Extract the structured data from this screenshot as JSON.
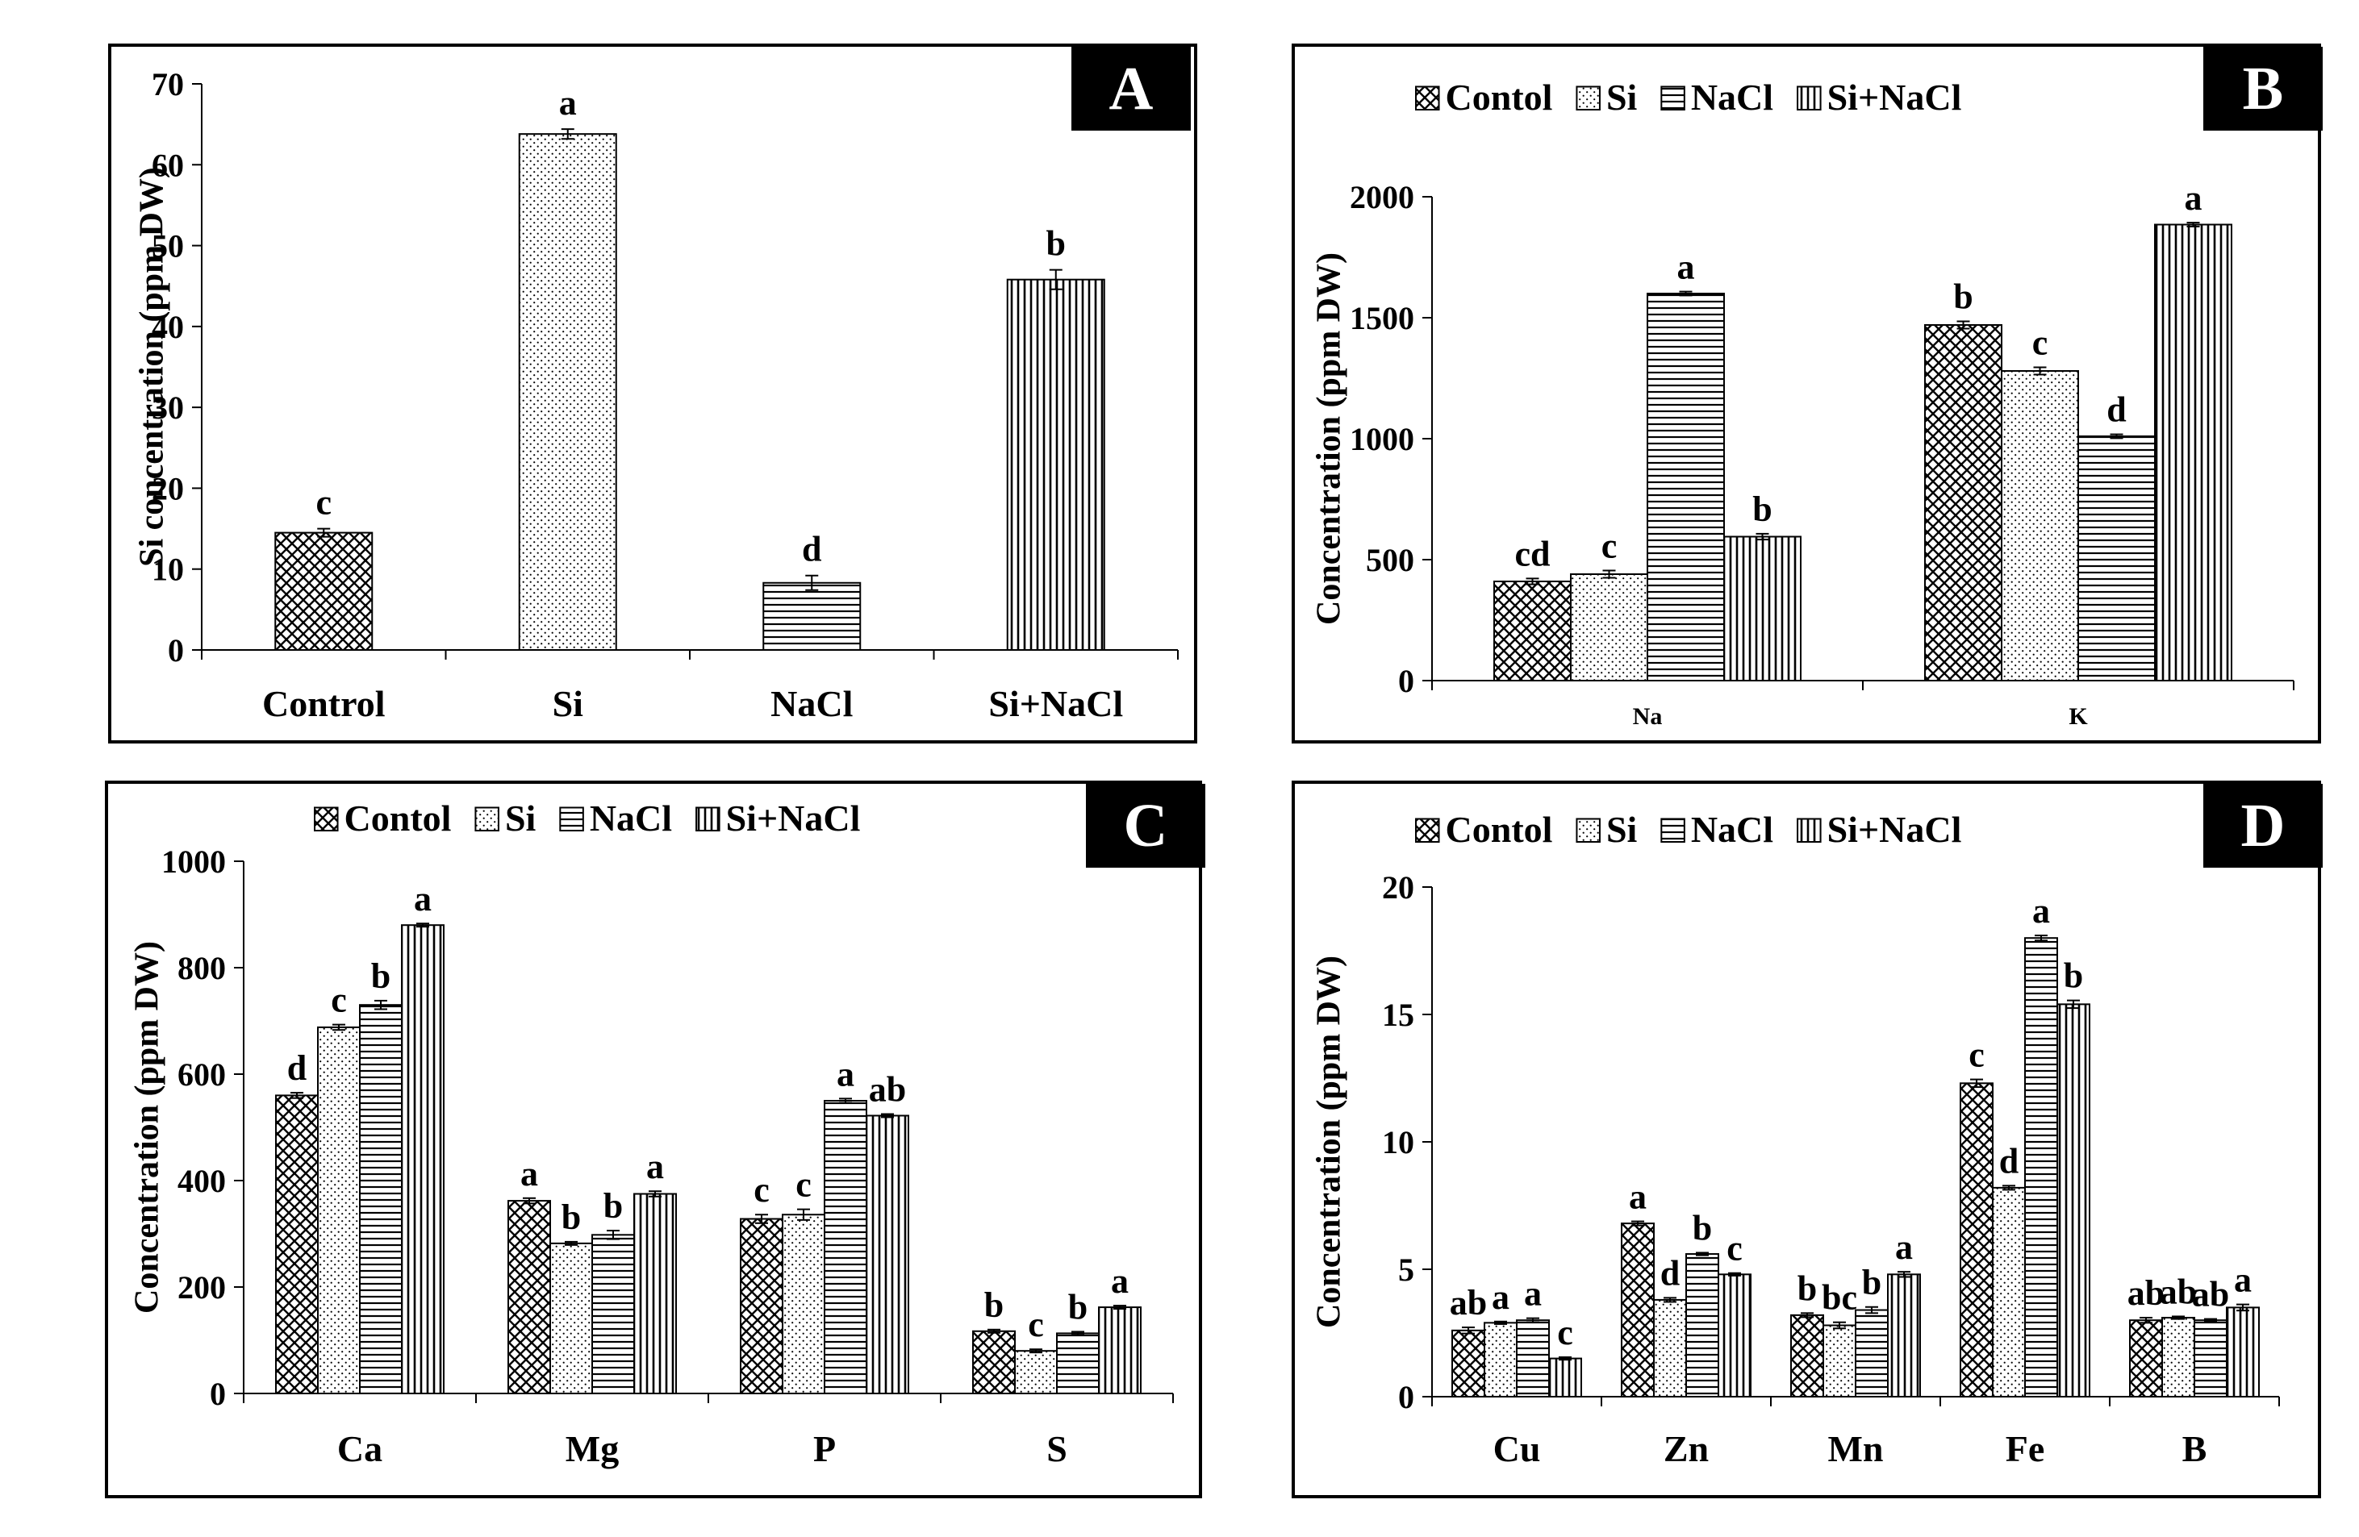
{
  "panels": [
    {
      "id": "A",
      "panel_label": "A",
      "ylabel": "Si concentration  (ppm DW)",
      "ylim": [
        0,
        70
      ],
      "yticks": [
        0,
        10,
        20,
        30,
        40,
        50,
        60,
        70
      ],
      "legend": null
    },
    {
      "id": "B",
      "panel_label": "B",
      "ylabel": "Concentration  (ppm DW)",
      "ylim": [
        0,
        2000
      ],
      "yticks": [
        0,
        500,
        1000,
        1500,
        2000
      ],
      "legend": [
        "Contol",
        "Si",
        "NaCl",
        "Si+NaCl"
      ]
    },
    {
      "id": "C",
      "panel_label": "C",
      "ylabel": "Concentration  (ppm DW)",
      "ylim": [
        0,
        1000
      ],
      "yticks": [
        0,
        200,
        400,
        600,
        800,
        1000
      ],
      "legend": [
        "Contol",
        "Si",
        "NaCl",
        "Si+NaCl"
      ]
    },
    {
      "id": "D",
      "panel_label": "D",
      "ylabel": "Concentration  (ppm DW)",
      "ylim": [
        0,
        20
      ],
      "yticks": [
        0,
        5,
        10,
        15,
        20
      ],
      "legend": [
        "Contol",
        "Si",
        "NaCl",
        "Si+NaCl"
      ]
    }
  ],
  "chart_data": [
    {
      "type": "bar",
      "panel": "A",
      "categories": [
        "Control",
        "Si",
        "NaCl",
        "Si+NaCl"
      ],
      "ylabel": "Si concentration  (ppm DW)",
      "ylim": [
        0,
        70
      ],
      "grid": false,
      "series": [
        {
          "values": [
            14.5,
            63.8,
            8.3,
            45.8
          ],
          "errors": [
            0.5,
            0.6,
            0.9,
            1.2
          ],
          "patterns": [
            "crosshatch",
            "dots",
            "horizontal",
            "vertical"
          ],
          "letters": [
            "c",
            "a",
            "d",
            "b"
          ]
        }
      ]
    },
    {
      "type": "bar",
      "panel": "B",
      "categories": [
        "Na",
        "K"
      ],
      "ylabel": "Concentration  (ppm DW)",
      "ylim": [
        0,
        2000
      ],
      "grid": false,
      "legend_position": "top",
      "series": [
        {
          "name": "Contol",
          "pattern": "crosshatch",
          "values": [
            410,
            1470
          ],
          "errors": [
            12,
            15
          ],
          "letters": [
            "cd",
            "b"
          ]
        },
        {
          "name": "Si",
          "pattern": "dots",
          "values": [
            440,
            1280
          ],
          "errors": [
            15,
            15
          ],
          "letters": [
            "c",
            "c"
          ]
        },
        {
          "name": "NaCl",
          "pattern": "horizontal",
          "values": [
            1600,
            1010
          ],
          "errors": [
            8,
            8
          ],
          "letters": [
            "a",
            "d"
          ]
        },
        {
          "name": "Si+NaCl",
          "pattern": "vertical",
          "values": [
            595,
            1885
          ],
          "errors": [
            12,
            8
          ],
          "letters": [
            "b",
            "a"
          ]
        }
      ]
    },
    {
      "type": "bar",
      "panel": "C",
      "categories": [
        "Ca",
        "Mg",
        "P",
        "S"
      ],
      "ylabel": "Concentration  (ppm DW)",
      "ylim": [
        0,
        1000
      ],
      "grid": false,
      "legend_position": "top",
      "series": [
        {
          "name": "Contol",
          "pattern": "crosshatch",
          "values": [
            560,
            362,
            328,
            117
          ],
          "errors": [
            5,
            5,
            8,
            3
          ],
          "letters": [
            "d",
            "a",
            "c",
            "b"
          ]
        },
        {
          "name": "Si",
          "pattern": "dots",
          "values": [
            688,
            282,
            336,
            80
          ],
          "errors": [
            5,
            3,
            10,
            3
          ],
          "letters": [
            "c",
            "b",
            "c",
            "c"
          ]
        },
        {
          "name": "NaCl",
          "pattern": "horizontal",
          "values": [
            730,
            298,
            550,
            113
          ],
          "errors": [
            8,
            8,
            4,
            3
          ],
          "letters": [
            "b",
            "b",
            "a",
            "b"
          ]
        },
        {
          "name": "Si+NaCl",
          "pattern": "vertical",
          "values": [
            880,
            375,
            522,
            162
          ],
          "errors": [
            3,
            5,
            3,
            3
          ],
          "letters": [
            "a",
            "a",
            "ab",
            "a"
          ]
        }
      ]
    },
    {
      "type": "bar",
      "panel": "D",
      "categories": [
        "Cu",
        "Zn",
        "Mn",
        "Fe",
        "B"
      ],
      "ylabel": "Concentration  (ppm DW)",
      "ylim": [
        0,
        20
      ],
      "grid": false,
      "legend_position": "top",
      "series": [
        {
          "name": "Contol",
          "pattern": "crosshatch",
          "values": [
            2.6,
            6.8,
            3.2,
            12.3,
            3.0
          ],
          "errors": [
            0.12,
            0.08,
            0.08,
            0.15,
            0.1
          ],
          "letters": [
            "ab",
            "a",
            "b",
            "c",
            "ab"
          ]
        },
        {
          "name": "Si",
          "pattern": "dots",
          "values": [
            2.9,
            3.8,
            2.8,
            8.2,
            3.1
          ],
          "errors": [
            0.05,
            0.08,
            0.12,
            0.08,
            0.05
          ],
          "letters": [
            "a",
            "d",
            "bc",
            "d",
            "ab"
          ]
        },
        {
          "name": "NaCl",
          "pattern": "horizontal",
          "values": [
            3.0,
            5.6,
            3.4,
            18.0,
            3.0
          ],
          "errors": [
            0.08,
            0.05,
            0.12,
            0.1,
            0.05
          ],
          "letters": [
            "a",
            "b",
            "b",
            "a",
            "ab"
          ]
        },
        {
          "name": "Si+NaCl",
          "pattern": "vertical",
          "values": [
            1.5,
            4.8,
            4.8,
            15.4,
            3.5
          ],
          "errors": [
            0.05,
            0.05,
            0.1,
            0.15,
            0.12
          ],
          "letters": [
            "c",
            "c",
            "a",
            "b",
            "a"
          ]
        }
      ]
    }
  ]
}
